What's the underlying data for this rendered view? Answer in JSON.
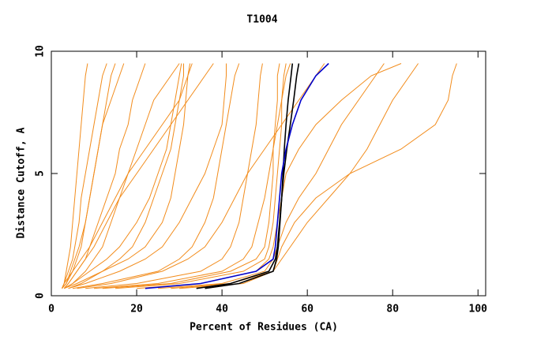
{
  "chart_data": {
    "type": "line",
    "title": "T1004",
    "xlabel": "Percent of Residues (CA)",
    "ylabel": "Distance Cutoff, A",
    "xlim": [
      0,
      101.8
    ],
    "ylim": [
      0,
      10
    ],
    "xticks": [
      0,
      20,
      40,
      60,
      80,
      100
    ],
    "yticks": [
      0,
      5,
      10
    ],
    "y": [
      0.3,
      0.5,
      1,
      1.5,
      2,
      3,
      4,
      5,
      6,
      7,
      8,
      9,
      9.5
    ],
    "series": [
      {
        "color": "#f28c1c",
        "x": [
          2.5,
          3,
          4,
          5,
          5.5,
          6.5,
          7,
          8,
          9,
          10,
          11,
          12,
          13
        ]
      },
      {
        "color": "#f28c1c",
        "x": [
          2.5,
          3.5,
          5,
          6,
          7,
          8,
          9,
          10,
          11,
          12,
          14,
          16,
          17
        ]
      },
      {
        "color": "#f28c1c",
        "x": [
          3,
          4,
          6,
          8,
          9,
          11,
          13,
          15,
          16,
          18,
          19,
          21,
          22
        ]
      },
      {
        "color": "#f28c1c",
        "x": [
          2.5,
          3,
          3.5,
          4,
          4.5,
          5,
          5.5,
          6,
          6.5,
          7,
          7.5,
          8,
          8.5
        ]
      },
      {
        "color": "#f28c1c",
        "x": [
          3,
          5,
          8,
          10,
          12,
          14,
          16,
          18,
          20,
          22,
          24,
          28,
          30
        ]
      },
      {
        "color": "#f28c1c",
        "x": [
          3,
          6,
          12,
          18,
          22,
          26,
          28,
          29,
          30,
          31,
          31.5,
          32,
          32.5
        ]
      },
      {
        "color": "#f28c1c",
        "x": [
          5,
          12,
          25,
          30,
          33,
          36,
          38,
          39,
          40,
          41,
          42,
          43,
          44
        ]
      },
      {
        "color": "#f28c1c",
        "x": [
          8,
          20,
          35,
          40,
          42,
          44,
          45,
          46,
          47,
          48,
          48.5,
          49,
          49.5
        ]
      },
      {
        "color": "#f28c1c",
        "x": [
          10,
          25,
          40,
          45,
          47,
          48.5,
          50,
          51,
          52,
          53,
          54,
          55,
          56
        ]
      },
      {
        "color": "#f28c1c",
        "x": [
          15,
          30,
          45,
          50,
          51,
          52,
          52.5,
          53,
          53.5,
          54,
          54,
          54.5,
          55
        ]
      },
      {
        "color": "#f28c1c",
        "x": [
          12,
          28,
          42,
          48,
          50,
          51,
          51.5,
          52,
          52,
          52.5,
          53,
          53,
          53.5
        ]
      },
      {
        "color": "#f28c1c",
        "x": [
          20,
          35,
          48,
          51,
          52,
          53,
          54,
          55,
          58,
          62,
          68,
          75,
          82
        ]
      },
      {
        "color": "#f28c1c",
        "x": [
          25,
          40,
          50,
          52,
          53,
          55,
          58,
          62,
          65,
          68,
          72,
          76,
          78
        ]
      },
      {
        "color": "#f28c1c",
        "x": [
          30,
          45,
          52,
          53,
          54,
          57,
          62,
          70,
          82,
          90,
          93,
          94,
          95
        ]
      },
      {
        "color": "#f28c1c",
        "x": [
          6,
          14,
          26,
          32,
          36,
          40,
          43,
          46,
          50,
          54,
          58,
          62,
          64
        ]
      },
      {
        "color": "#f28c1c",
        "x": [
          4,
          8,
          16,
          22,
          26,
          30,
          33,
          36,
          38,
          40,
          40.5,
          41,
          41
        ]
      },
      {
        "color": "#f28c1c",
        "x": [
          3,
          5,
          9,
          13,
          16,
          20,
          23,
          25,
          27,
          28,
          29,
          30,
          30.5
        ]
      },
      {
        "color": "#f28c1c",
        "x": [
          3,
          4,
          6,
          8,
          10,
          13,
          16,
          20,
          24,
          28,
          32,
          36,
          38
        ]
      },
      {
        "color": "#f28c1c",
        "x": [
          2.5,
          3,
          5,
          7,
          9,
          12,
          15,
          18,
          22,
          26,
          30,
          32,
          33
        ]
      },
      {
        "color": "#f28c1c",
        "x": [
          28,
          42,
          52,
          54,
          56,
          60,
          65,
          70,
          74,
          77,
          80,
          84,
          86
        ]
      },
      {
        "color": "#f28c1c",
        "x": [
          2.5,
          3.5,
          4.5,
          5.5,
          6.5,
          8,
          9,
          10,
          11,
          12,
          13,
          14,
          15
        ]
      },
      {
        "color": "#f28c1c",
        "x": [
          4,
          7,
          12,
          16,
          19,
          22,
          24,
          26,
          28,
          29,
          30,
          31,
          31
        ]
      },
      {
        "color": "#000000",
        "x": [
          34,
          42,
          51,
          52.5,
          53,
          53.5,
          54,
          54.3,
          54.6,
          55,
          55.5,
          56.2,
          56.5
        ]
      },
      {
        "color": "#000000",
        "x": [
          36,
          44,
          52,
          52.8,
          53.2,
          53.6,
          54,
          54.5,
          55.2,
          56,
          56.8,
          57.5,
          58
        ]
      },
      {
        "color": "#0000cc",
        "x": [
          22,
          35,
          48,
          52,
          52.5,
          53,
          53.5,
          54,
          55,
          56.5,
          58.5,
          62,
          65
        ]
      }
    ]
  }
}
